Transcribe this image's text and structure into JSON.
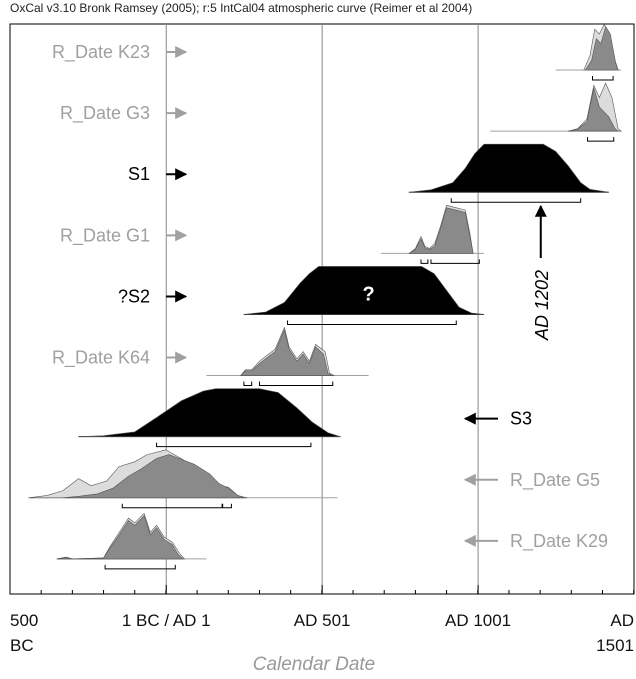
{
  "header": "OxCal v3.10 Bronk Ramsey (2005); r:5 IntCal04 atmospheric curve (Reimer et al 2004)",
  "chart_data": {
    "type": "area",
    "title": "",
    "xlabel": "Calendar Date",
    "xlim": [
      -500,
      1501
    ],
    "major_ticks": [
      -500,
      1,
      501,
      1001,
      1501
    ],
    "tick_labels": [
      {
        "x": -500,
        "line1": "500",
        "line2": "BC"
      },
      {
        "x": 1,
        "line1": "1 BC / AD 1",
        "line2": ""
      },
      {
        "x": 501,
        "line1": "AD 501",
        "line2": ""
      },
      {
        "x": 1001,
        "line1": "AD 1001",
        "line2": ""
      },
      {
        "x": 1501,
        "line1": "AD",
        "line2": "1501"
      }
    ],
    "minor_tick_step": 100,
    "vertical_lines": [
      1,
      501,
      1001
    ],
    "colors": {
      "text_dark": "#000000",
      "text_light": "#a0a0a0",
      "prior": "#dcdcdc",
      "posterior": "#8a8a8a",
      "phase": "#000000"
    },
    "rows": [
      {
        "label": "R_Date K23",
        "kind": "date",
        "side": "left",
        "range": [
          1250,
          1460
        ],
        "prior": [
          [
            1340,
            0
          ],
          [
            1360,
            0.3
          ],
          [
            1375,
            0.85
          ],
          [
            1390,
            0.75
          ],
          [
            1405,
            0.95
          ],
          [
            1420,
            0.8
          ],
          [
            1440,
            0.2
          ],
          [
            1450,
            0
          ]
        ],
        "posterior": [
          [
            1345,
            0
          ],
          [
            1365,
            0.2
          ],
          [
            1380,
            0.65
          ],
          [
            1395,
            0.55
          ],
          [
            1410,
            0.9
          ],
          [
            1425,
            0.75
          ],
          [
            1442,
            0.15
          ],
          [
            1450,
            0
          ]
        ],
        "brackets": [
          [
            1368,
            1434
          ]
        ]
      },
      {
        "label": "R_Date G3",
        "kind": "date",
        "side": "left",
        "range": [
          1040,
          1460
        ],
        "prior": [
          [
            1290,
            0
          ],
          [
            1320,
            0.05
          ],
          [
            1350,
            0.25
          ],
          [
            1372,
            0.95
          ],
          [
            1390,
            0.7
          ],
          [
            1410,
            1.0
          ],
          [
            1430,
            0.7
          ],
          [
            1450,
            0.05
          ],
          [
            1460,
            0
          ]
        ],
        "posterior": [
          [
            1290,
            0
          ],
          [
            1320,
            0.04
          ],
          [
            1350,
            0.2
          ],
          [
            1372,
            0.9
          ],
          [
            1390,
            0.5
          ],
          [
            1405,
            0.4
          ],
          [
            1420,
            0.3
          ],
          [
            1440,
            0.05
          ],
          [
            1450,
            0
          ]
        ],
        "brackets": [
          [
            1352,
            1436
          ]
        ]
      },
      {
        "label": "S1",
        "kind": "phase",
        "side": "left",
        "range": [
          780,
          1420
        ],
        "phase": [
          [
            780,
            0
          ],
          [
            850,
            0.05
          ],
          [
            920,
            0.2
          ],
          [
            960,
            0.5
          ],
          [
            990,
            0.8
          ],
          [
            1020,
            1.0
          ],
          [
            1210,
            1.0
          ],
          [
            1250,
            0.85
          ],
          [
            1290,
            0.55
          ],
          [
            1330,
            0.2
          ],
          [
            1360,
            0.06
          ],
          [
            1420,
            0
          ]
        ],
        "brackets": [
          [
            915,
            1330
          ]
        ]
      },
      {
        "label": "R_Date G1",
        "kind": "date",
        "side": "left",
        "range": [
          690,
          1020
        ],
        "prior": [
          [
            780,
            0
          ],
          [
            800,
            0.1
          ],
          [
            818,
            0.35
          ],
          [
            830,
            0.15
          ],
          [
            845,
            0.1
          ],
          [
            862,
            0.2
          ],
          [
            880,
            0.55
          ],
          [
            900,
            1.0
          ],
          [
            930,
            0.95
          ],
          [
            960,
            0.9
          ],
          [
            975,
            0.4
          ],
          [
            985,
            0
          ]
        ],
        "posterior": [
          [
            780,
            0
          ],
          [
            800,
            0.08
          ],
          [
            818,
            0.3
          ],
          [
            830,
            0.12
          ],
          [
            845,
            0.08
          ],
          [
            862,
            0.15
          ],
          [
            880,
            0.5
          ],
          [
            900,
            0.95
          ],
          [
            930,
            0.9
          ],
          [
            960,
            0.85
          ],
          [
            975,
            0.35
          ],
          [
            985,
            0
          ]
        ],
        "brackets": [
          [
            818,
            840
          ],
          [
            850,
            1005
          ]
        ]
      },
      {
        "label": "?S2",
        "kind": "phase",
        "side": "left",
        "marker": "?",
        "range": [
          250,
          1020
        ],
        "phase": [
          [
            250,
            0
          ],
          [
            320,
            0.05
          ],
          [
            380,
            0.25
          ],
          [
            430,
            0.65
          ],
          [
            460,
            0.85
          ],
          [
            490,
            1.0
          ],
          [
            820,
            1.0
          ],
          [
            860,
            0.85
          ],
          [
            900,
            0.5
          ],
          [
            940,
            0.15
          ],
          [
            980,
            0.03
          ],
          [
            1020,
            0
          ]
        ],
        "brackets": [
          [
            390,
            931
          ]
        ]
      },
      {
        "label": "R_Date K64",
        "kind": "date",
        "side": "left",
        "range": [
          130,
          650
        ],
        "prior": [
          [
            240,
            0
          ],
          [
            255,
            0.12
          ],
          [
            275,
            0.12
          ],
          [
            300,
            0.3
          ],
          [
            330,
            0.45
          ],
          [
            350,
            0.55
          ],
          [
            380,
            1.0
          ],
          [
            395,
            0.6
          ],
          [
            420,
            0.35
          ],
          [
            440,
            0.5
          ],
          [
            460,
            0.3
          ],
          [
            480,
            0.65
          ],
          [
            510,
            0.5
          ],
          [
            525,
            0.05
          ],
          [
            540,
            0
          ]
        ],
        "posterior": [
          [
            240,
            0
          ],
          [
            255,
            0.1
          ],
          [
            275,
            0.1
          ],
          [
            300,
            0.25
          ],
          [
            330,
            0.4
          ],
          [
            350,
            0.5
          ],
          [
            380,
            0.95
          ],
          [
            395,
            0.55
          ],
          [
            420,
            0.3
          ],
          [
            440,
            0.45
          ],
          [
            460,
            0.25
          ],
          [
            480,
            0.6
          ],
          [
            505,
            0.45
          ],
          [
            520,
            0.04
          ],
          [
            535,
            0
          ]
        ],
        "brackets": [
          [
            250,
            275
          ],
          [
            300,
            535
          ]
        ]
      },
      {
        "label": "S3",
        "kind": "phase",
        "side": "right",
        "range": [
          -280,
          560
        ],
        "phase": [
          [
            -280,
            0
          ],
          [
            -200,
            0.02
          ],
          [
            -100,
            0.1
          ],
          [
            -30,
            0.4
          ],
          [
            50,
            0.75
          ],
          [
            120,
            0.95
          ],
          [
            160,
            1.0
          ],
          [
            300,
            1.0
          ],
          [
            360,
            0.92
          ],
          [
            420,
            0.6
          ],
          [
            470,
            0.3
          ],
          [
            520,
            0.08
          ],
          [
            560,
            0
          ]
        ],
        "brackets": [
          [
            -30,
            465
          ]
        ]
      },
      {
        "label": "R_Date G5",
        "kind": "date",
        "side": "right",
        "range": [
          -440,
          550
        ],
        "prior": [
          [
            -440,
            0
          ],
          [
            -380,
            0.05
          ],
          [
            -330,
            0.15
          ],
          [
            -280,
            0.4
          ],
          [
            -240,
            0.25
          ],
          [
            -190,
            0.35
          ],
          [
            -150,
            0.65
          ],
          [
            -100,
            0.75
          ],
          [
            -60,
            0.9
          ],
          [
            0,
            1.0
          ],
          [
            40,
            0.85
          ],
          [
            80,
            0.7
          ],
          [
            130,
            0.5
          ],
          [
            175,
            0.25
          ],
          [
            200,
            0.22
          ],
          [
            230,
            0.05
          ],
          [
            260,
            0
          ]
        ],
        "posterior": [
          [
            -330,
            0
          ],
          [
            -280,
            0.03
          ],
          [
            -220,
            0.08
          ],
          [
            -170,
            0.2
          ],
          [
            -120,
            0.45
          ],
          [
            -80,
            0.6
          ],
          [
            -30,
            0.82
          ],
          [
            10,
            0.9
          ],
          [
            50,
            0.8
          ],
          [
            90,
            0.7
          ],
          [
            140,
            0.5
          ],
          [
            170,
            0.3
          ],
          [
            200,
            0.2
          ],
          [
            230,
            0.05
          ],
          [
            250,
            0
          ]
        ],
        "brackets": [
          [
            -140,
            180
          ],
          [
            182,
            210
          ]
        ]
      },
      {
        "label": "R_Date K29",
        "kind": "date",
        "side": "right",
        "range": [
          -350,
          130
        ],
        "prior": [
          [
            -350,
            0
          ],
          [
            -320,
            0.04
          ],
          [
            -300,
            0
          ],
          [
            -200,
            0.02
          ],
          [
            -180,
            0.25
          ],
          [
            -150,
            0.55
          ],
          [
            -120,
            0.85
          ],
          [
            -100,
            0.75
          ],
          [
            -70,
            0.95
          ],
          [
            -50,
            0.55
          ],
          [
            -30,
            0.7
          ],
          [
            -5,
            0.45
          ],
          [
            20,
            0.35
          ],
          [
            45,
            0.1
          ],
          [
            60,
            0
          ]
        ],
        "posterior": [
          [
            -350,
            0
          ],
          [
            -320,
            0.03
          ],
          [
            -300,
            0
          ],
          [
            -200,
            0.02
          ],
          [
            -180,
            0.22
          ],
          [
            -150,
            0.5
          ],
          [
            -120,
            0.8
          ],
          [
            -100,
            0.7
          ],
          [
            -70,
            0.9
          ],
          [
            -50,
            0.5
          ],
          [
            -30,
            0.65
          ],
          [
            -5,
            0.4
          ],
          [
            20,
            0.3
          ],
          [
            40,
            0.08
          ],
          [
            55,
            0
          ]
        ],
        "brackets": [
          [
            -195,
            30
          ]
        ]
      }
    ],
    "annotations": [
      {
        "text": "AD 1202",
        "x": 1202,
        "arrow": "up",
        "orientation": "vertical"
      },
      {
        "text": "?",
        "row": "?S2",
        "x": 650
      }
    ]
  }
}
